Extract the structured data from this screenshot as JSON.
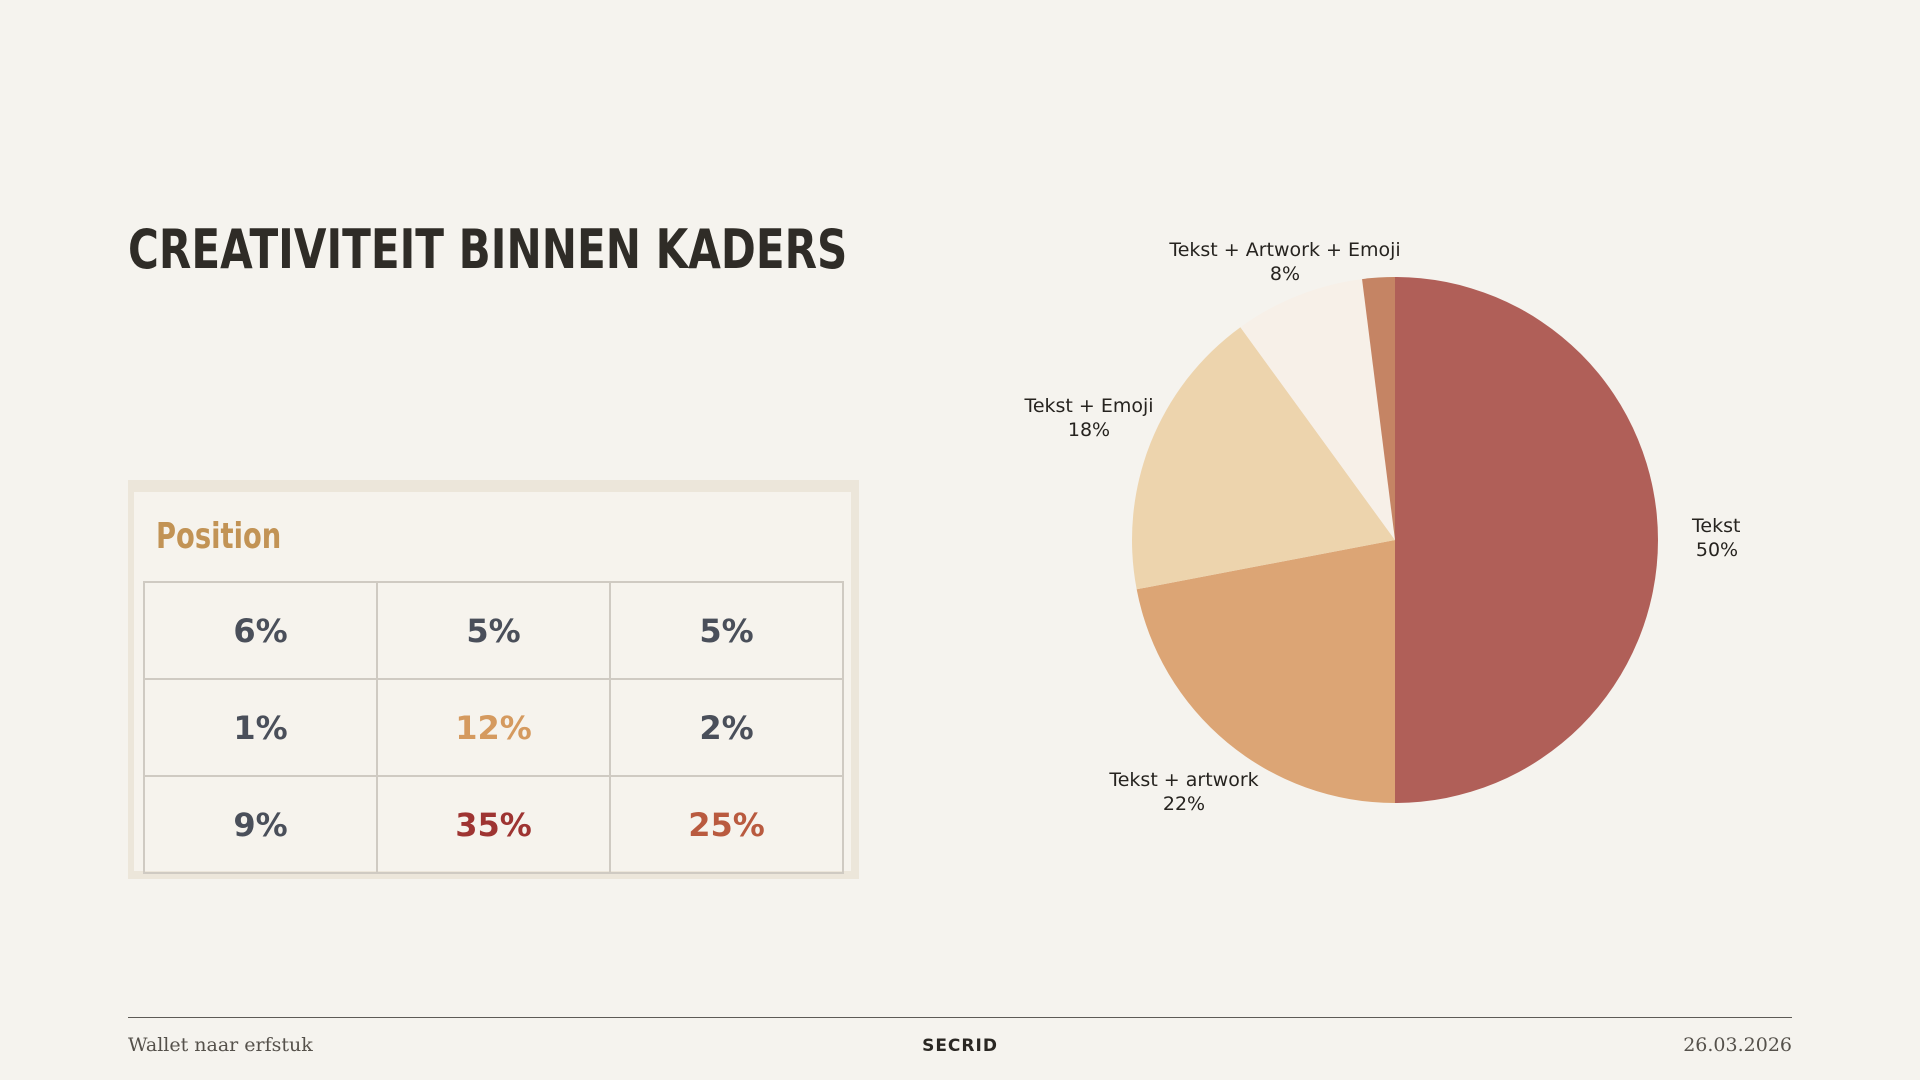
{
  "slide": {
    "title": "CREATIVITEIT BINNEN KADERS"
  },
  "position": {
    "heading": "Position",
    "rows": [
      [
        {
          "value": "6%",
          "color": "#4a4f5a"
        },
        {
          "value": "5%",
          "color": "#4a4f5a"
        },
        {
          "value": "5%",
          "color": "#4a4f5a"
        }
      ],
      [
        {
          "value": "1%",
          "color": "#4a4f5a"
        },
        {
          "value": "12%",
          "color": "#d59a5f"
        },
        {
          "value": "2%",
          "color": "#4a4f5a"
        }
      ],
      [
        {
          "value": "9%",
          "color": "#4a4f5a"
        },
        {
          "value": "35%",
          "color": "#9e3432"
        },
        {
          "value": "25%",
          "color": "#b95a3f"
        }
      ]
    ]
  },
  "chart_data": {
    "type": "pie",
    "slices": [
      {
        "label": "Tekst",
        "value": 50,
        "value_label": "50%",
        "color": "#b05f58"
      },
      {
        "label": "Tekst + artwork",
        "value": 22,
        "value_label": "22%",
        "color": "#dca575"
      },
      {
        "label": "Tekst + Emoji",
        "value": 18,
        "value_label": "18%",
        "color": "#edd4ad"
      },
      {
        "label": "Tekst + Artwork + Emoji",
        "value": 8,
        "value_label": "8%",
        "color": "#f7f0e8"
      },
      {
        "label": "",
        "value": 2,
        "value_label": "",
        "color": "#c58464"
      }
    ],
    "start": "12 o'clock",
    "direction": "clockwise",
    "legend": "none"
  },
  "footer": {
    "left": "Wallet naar erfstuk",
    "center": "SECRID",
    "right": "26.03.2026"
  }
}
